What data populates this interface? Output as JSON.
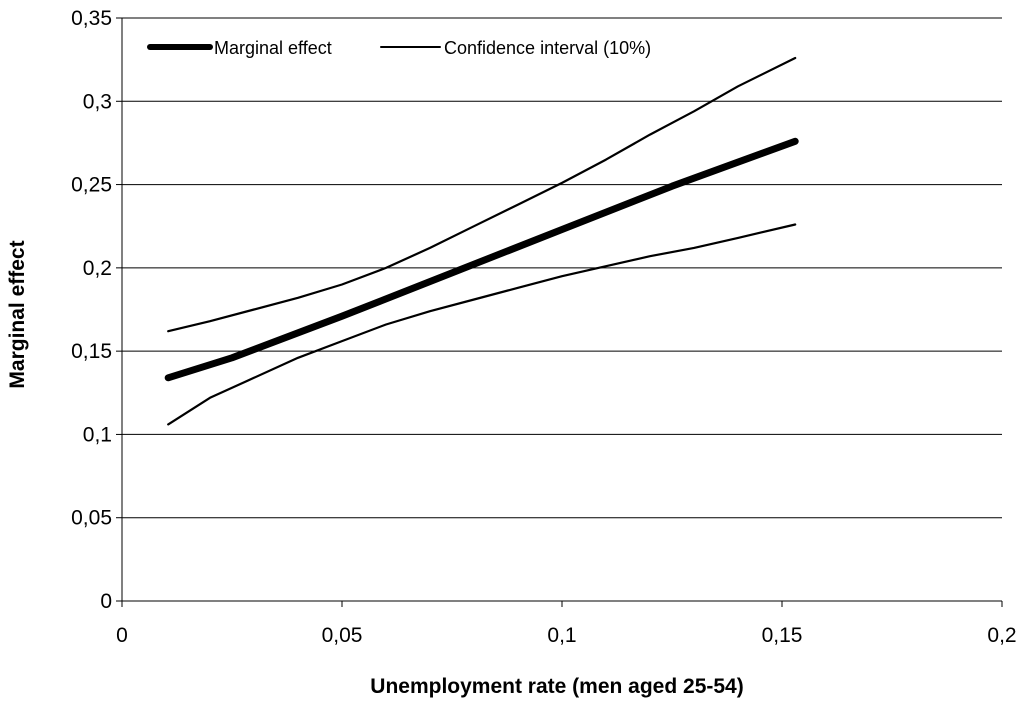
{
  "chart_data": {
    "type": "line",
    "title": "",
    "xlabel": "Unemployment rate (men aged 25-54)",
    "ylabel": "Marginal effect",
    "xlim": [
      0,
      0.2
    ],
    "ylim": [
      0,
      0.35
    ],
    "x_ticks": [
      {
        "value": 0,
        "label": "0"
      },
      {
        "value": 0.05,
        "label": "0,05"
      },
      {
        "value": 0.1,
        "label": "0,1"
      },
      {
        "value": 0.15,
        "label": "0,15"
      },
      {
        "value": 0.2,
        "label": "0,2"
      }
    ],
    "y_ticks": [
      {
        "value": 0,
        "label": "0"
      },
      {
        "value": 0.05,
        "label": "0,05"
      },
      {
        "value": 0.1,
        "label": "0,1"
      },
      {
        "value": 0.15,
        "label": "0,15"
      },
      {
        "value": 0.2,
        "label": "0,2"
      },
      {
        "value": 0.25,
        "label": "0,25"
      },
      {
        "value": 0.3,
        "label": "0,3"
      },
      {
        "value": 0.35,
        "label": "0,35"
      }
    ],
    "grid": "horizontal",
    "legend_position": "top-left",
    "legend": [
      {
        "label": "Marginal effect",
        "style": "thick"
      },
      {
        "label": "Confidence interval (10%)",
        "style": "thin"
      }
    ],
    "series": [
      {
        "name": "Marginal effect",
        "style": "thick",
        "x": [
          0.0105,
          0.025,
          0.05,
          0.075,
          0.1,
          0.125,
          0.153
        ],
        "y": [
          0.134,
          0.146,
          0.171,
          0.197,
          0.223,
          0.249,
          0.276
        ]
      },
      {
        "name": "Confidence interval (10%)",
        "style": "thin",
        "x": [
          0.0105,
          0.02,
          0.03,
          0.04,
          0.05,
          0.06,
          0.07,
          0.08,
          0.09,
          0.1,
          0.11,
          0.12,
          0.13,
          0.14,
          0.153
        ],
        "y": [
          0.162,
          0.168,
          0.175,
          0.182,
          0.19,
          0.2,
          0.212,
          0.225,
          0.238,
          0.251,
          0.265,
          0.28,
          0.294,
          0.309,
          0.326
        ]
      },
      {
        "name": "Confidence interval (10%)",
        "style": "thin",
        "x": [
          0.0105,
          0.02,
          0.03,
          0.04,
          0.05,
          0.06,
          0.07,
          0.08,
          0.09,
          0.1,
          0.11,
          0.12,
          0.13,
          0.14,
          0.153
        ],
        "y": [
          0.106,
          0.122,
          0.134,
          0.146,
          0.156,
          0.166,
          0.174,
          0.181,
          0.188,
          0.195,
          0.201,
          0.207,
          0.212,
          0.218,
          0.226
        ]
      }
    ]
  }
}
